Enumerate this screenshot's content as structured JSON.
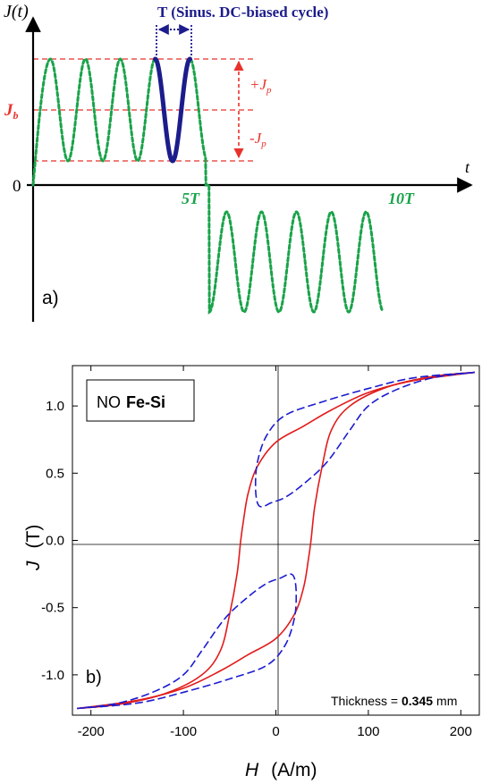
{
  "chart_data": [
    {
      "type": "line",
      "panel_label": "a)",
      "y_axis_label": "J(t)",
      "x_axis_label": "t",
      "origin_label": "0",
      "tick_labels": [
        "5T",
        "10T"
      ],
      "period_annotation": "T (Sinus. DC-biased cycle)",
      "bias_label": "J",
      "bias_subscript": "b",
      "plus_peak_label": "+J",
      "minus_peak_label": "-J",
      "peak_subscript": "p",
      "series": [
        {
          "color": "#1aa34a",
          "style": "dashed",
          "cycles": [
            [
              0,
              5,
              "positive"
            ],
            [
              5,
              10,
              "negative"
            ]
          ]
        },
        {
          "color": "#1c1c8c",
          "style": "solid",
          "cycles": [
            [
              3,
              4,
              "positive"
            ]
          ]
        }
      ],
      "guide_color": "#e8322b"
    },
    {
      "type": "line",
      "panel_label": "b)",
      "inset_label_normal": "NO",
      "inset_label_bold": "Fe-Si",
      "xlabel": "H",
      "xunit": "(A/m)",
      "ylabel": "J",
      "yunit": "(T)",
      "xlim": [
        -220,
        220
      ],
      "ylim": [
        -1.3,
        1.3
      ],
      "xticks": [
        "-200",
        "-100",
        "0",
        "100",
        "200"
      ],
      "yticks": [
        "-1.0",
        "-0.5",
        "0.0",
        "0.5",
        "1.0"
      ],
      "thickness_prefix": "Thickness = ",
      "thickness_value": "0.345",
      "thickness_unit": "mm",
      "series": [
        {
          "color": "#e21b1b",
          "style": "solid",
          "branch_upper": [
            [
              215,
              1.25
            ],
            [
              150,
              1.19
            ],
            [
              100,
              1.1
            ],
            [
              60,
              0.97
            ],
            [
              30,
              0.85
            ],
            [
              0,
              0.73
            ],
            [
              -20,
              0.55
            ],
            [
              -30,
              0.35
            ],
            [
              -35,
              0.15
            ],
            [
              -38,
              0.0
            ],
            [
              -42,
              -0.25
            ],
            [
              -50,
              -0.55
            ],
            [
              -60,
              -0.82
            ],
            [
              -80,
              -1.0
            ],
            [
              -120,
              -1.14
            ],
            [
              -170,
              -1.22
            ],
            [
              -215,
              -1.25
            ]
          ],
          "branch_lower": [
            [
              -215,
              -1.25
            ],
            [
              -150,
              -1.19
            ],
            [
              -100,
              -1.1
            ],
            [
              -60,
              -0.97
            ],
            [
              -30,
              -0.85
            ],
            [
              0,
              -0.73
            ],
            [
              20,
              -0.55
            ],
            [
              30,
              -0.35
            ],
            [
              35,
              -0.15
            ],
            [
              38,
              0.0
            ],
            [
              42,
              0.25
            ],
            [
              50,
              0.55
            ],
            [
              60,
              0.82
            ],
            [
              80,
              1.0
            ],
            [
              120,
              1.14
            ],
            [
              170,
              1.22
            ],
            [
              215,
              1.25
            ]
          ]
        },
        {
          "color": "#1b1bd0",
          "style": "dashed",
          "upper_loop": [
            [
              215,
              1.25
            ],
            [
              150,
              1.21
            ],
            [
              100,
              1.13
            ],
            [
              50,
              1.03
            ],
            [
              10,
              0.93
            ],
            [
              -10,
              0.78
            ],
            [
              -20,
              0.58
            ],
            [
              -22,
              0.4
            ],
            [
              -20,
              0.28
            ],
            [
              -15,
              0.25
            ],
            [
              -5,
              0.28
            ],
            [
              10,
              0.32
            ],
            [
              30,
              0.42
            ],
            [
              55,
              0.58
            ],
            [
              80,
              0.82
            ],
            [
              100,
              1.0
            ],
            [
              130,
              1.12
            ],
            [
              170,
              1.21
            ],
            [
              215,
              1.25
            ]
          ],
          "lower_loop": [
            [
              -215,
              -1.25
            ],
            [
              -150,
              -1.21
            ],
            [
              -100,
              -1.13
            ],
            [
              -50,
              -1.03
            ],
            [
              -10,
              -0.93
            ],
            [
              10,
              -0.78
            ],
            [
              20,
              -0.58
            ],
            [
              22,
              -0.4
            ],
            [
              20,
              -0.28
            ],
            [
              15,
              -0.25
            ],
            [
              5,
              -0.28
            ],
            [
              -10,
              -0.32
            ],
            [
              -30,
              -0.42
            ],
            [
              -55,
              -0.58
            ],
            [
              -80,
              -0.82
            ],
            [
              -100,
              -1.0
            ],
            [
              -130,
              -1.12
            ],
            [
              -170,
              -1.21
            ],
            [
              -215,
              -1.25
            ]
          ]
        }
      ]
    }
  ]
}
